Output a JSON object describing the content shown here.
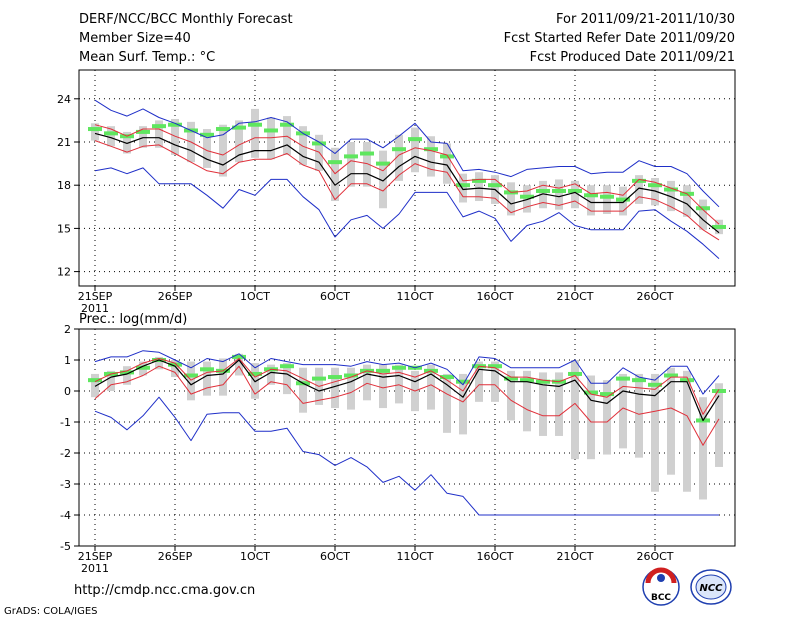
{
  "header": {
    "left": [
      "DERF/NCC/BCC Monthly Forecast",
      "Member Size=40",
      "Mean Surf. Temp.: °C"
    ],
    "right": [
      "For 2011/09/21-2011/10/30",
      "Fcst Started Refer Date 2011/09/20",
      "Fcst Produced Date 2011/09/21"
    ]
  },
  "footer": {
    "url": "http://cmdp.ncc.cma.gov.cn",
    "credit": "GrADS: COLA/IGES"
  },
  "logos": {
    "bcc": "BCC",
    "ncc": "NCC"
  },
  "colors": {
    "grid": "#000000",
    "spread": "#d0d0d0",
    "median": "#5fe65f",
    "mean": "#000000",
    "pct": "#e0303a",
    "extreme": "#1f2fc8"
  },
  "chart_data": [
    {
      "type": "line",
      "title": "Mean Surf. Temp.: °C",
      "x_labels": [
        "21SEP",
        "26SEP",
        "1OCT",
        "6OCT",
        "11OCT",
        "16OCT",
        "21OCT",
        "26OCT"
      ],
      "x_label_positions": [
        0,
        5,
        10,
        15,
        20,
        25,
        30,
        35
      ],
      "x_sublabel": "2011",
      "ylim": [
        11,
        26
      ],
      "yticks": [
        12,
        15,
        18,
        21,
        24
      ],
      "series": [
        {
          "name": "ensemble mean",
          "values": [
            21.6,
            21.3,
            20.9,
            21.3,
            21.3,
            20.8,
            20.4,
            19.8,
            19.4,
            20.1,
            20.4,
            20.4,
            20.8,
            20.0,
            19.6,
            18.0,
            18.8,
            18.8,
            18.3,
            19.3,
            20.0,
            19.6,
            19.4,
            17.7,
            17.8,
            17.7,
            16.7,
            17.0,
            17.4,
            17.2,
            17.5,
            16.8,
            16.8,
            16.8,
            17.8,
            17.6,
            17.2,
            16.7,
            15.6,
            14.7
          ]
        },
        {
          "name": "upper percentile",
          "values": [
            22.2,
            21.9,
            21.4,
            21.9,
            21.9,
            21.4,
            21.0,
            20.4,
            20.1,
            20.8,
            21.3,
            21.3,
            21.4,
            20.7,
            20.3,
            18.8,
            19.7,
            19.5,
            19.0,
            20.1,
            20.6,
            20.4,
            20.1,
            18.3,
            18.4,
            18.4,
            17.5,
            17.6,
            18.0,
            17.8,
            18.1,
            17.4,
            17.5,
            17.3,
            18.4,
            18.2,
            17.8,
            17.4,
            16.3,
            15.3
          ]
        },
        {
          "name": "lower percentile",
          "values": [
            21.1,
            20.7,
            20.3,
            20.7,
            20.8,
            20.2,
            19.6,
            19.0,
            18.8,
            19.6,
            19.8,
            19.8,
            20.2,
            19.4,
            19.0,
            17.0,
            18.1,
            18.1,
            17.6,
            18.7,
            19.5,
            19.1,
            18.9,
            17.2,
            17.2,
            17.1,
            16.1,
            16.5,
            16.8,
            16.6,
            16.9,
            16.2,
            16.2,
            16.2,
            17.2,
            17.0,
            16.5,
            15.9,
            14.9,
            14.2
          ]
        },
        {
          "name": "maximum",
          "values": [
            23.9,
            23.2,
            22.8,
            23.3,
            22.7,
            22.3,
            21.8,
            21.3,
            21.5,
            22.3,
            22.4,
            22.7,
            22.4,
            21.6,
            21.0,
            20.2,
            21.2,
            21.2,
            20.6,
            21.4,
            22.3,
            21.0,
            20.9,
            19.0,
            19.1,
            18.9,
            18.6,
            19.1,
            19.2,
            19.3,
            19.3,
            18.8,
            18.9,
            18.9,
            19.7,
            19.3,
            19.3,
            18.8,
            17.6,
            16.5
          ]
        },
        {
          "name": "minimum",
          "values": [
            19.0,
            19.2,
            18.8,
            19.2,
            18.1,
            18.1,
            18.1,
            17.3,
            16.4,
            17.7,
            17.3,
            18.4,
            18.4,
            17.2,
            16.3,
            14.4,
            15.6,
            15.9,
            15.0,
            16.0,
            17.5,
            17.5,
            17.5,
            15.8,
            16.2,
            15.7,
            14.1,
            15.2,
            15.5,
            16.1,
            15.2,
            14.9,
            14.9,
            14.9,
            16.2,
            16.3,
            15.5,
            14.8,
            13.9,
            12.9
          ]
        },
        {
          "name": "median",
          "values": [
            21.9,
            21.6,
            21.4,
            21.7,
            22.1,
            22.2,
            21.8,
            21.5,
            21.9,
            22.0,
            22.2,
            21.8,
            22.2,
            21.6,
            20.9,
            19.6,
            20.0,
            20.2,
            19.5,
            20.5,
            21.2,
            20.5,
            20.0,
            18.0,
            18.3,
            18.0,
            17.5,
            17.2,
            17.6,
            17.6,
            17.6,
            17.3,
            17.2,
            17.0,
            18.3,
            18.0,
            17.7,
            17.4,
            16.4,
            15.1
          ]
        },
        {
          "name": "spread upper",
          "values": [
            22.3,
            22.1,
            21.7,
            22.1,
            22.5,
            22.6,
            22.4,
            21.9,
            22.2,
            22.5,
            23.3,
            22.7,
            22.8,
            22.1,
            21.5,
            20.6,
            21.0,
            21.0,
            20.4,
            21.5,
            22.0,
            21.4,
            20.9,
            18.8,
            18.9,
            18.7,
            18.2,
            18.0,
            18.3,
            18.4,
            18.3,
            18.0,
            18.0,
            17.9,
            18.7,
            18.5,
            18.3,
            18.0,
            17.0,
            15.6
          ]
        },
        {
          "name": "spread lower",
          "values": [
            21.1,
            20.7,
            20.2,
            20.6,
            20.6,
            20.1,
            19.6,
            19.2,
            18.6,
            19.6,
            19.9,
            19.8,
            20.1,
            19.4,
            19.0,
            16.9,
            17.9,
            17.9,
            16.4,
            18.3,
            18.9,
            18.6,
            18.1,
            16.8,
            16.9,
            16.7,
            15.9,
            16.1,
            16.4,
            16.3,
            16.4,
            15.9,
            16.0,
            15.9,
            16.7,
            16.6,
            16.2,
            15.8,
            14.9,
            14.6
          ]
        }
      ]
    },
    {
      "type": "line",
      "title": "Prec.: log(mm/d)",
      "x_labels": [
        "21SEP",
        "26SEP",
        "1OCT",
        "6OCT",
        "11OCT",
        "16OCT",
        "21OCT",
        "26OCT"
      ],
      "x_label_positions": [
        0,
        5,
        10,
        15,
        20,
        25,
        30,
        35
      ],
      "x_sublabel": "2011",
      "ylim": [
        -5,
        2
      ],
      "yticks": [
        -5,
        -4,
        -3,
        -2,
        -1,
        0,
        1,
        2
      ],
      "series": [
        {
          "name": "ensemble mean",
          "values": [
            0.15,
            0.45,
            0.55,
            0.8,
            1.0,
            0.8,
            0.2,
            0.5,
            0.55,
            1.0,
            0.3,
            0.6,
            0.55,
            0.25,
            0.0,
            0.15,
            0.3,
            0.55,
            0.45,
            0.5,
            0.3,
            0.55,
            0.2,
            -0.2,
            0.7,
            0.65,
            0.3,
            0.3,
            0.2,
            0.15,
            0.35,
            -0.3,
            -0.4,
            0.0,
            -0.1,
            -0.15,
            0.3,
            0.3,
            -0.95,
            -0.15
          ]
        },
        {
          "name": "upper percentile",
          "values": [
            0.3,
            0.55,
            0.65,
            0.9,
            1.05,
            0.9,
            0.35,
            0.6,
            0.65,
            1.05,
            0.45,
            0.7,
            0.65,
            0.4,
            0.15,
            0.3,
            0.45,
            0.65,
            0.55,
            0.6,
            0.45,
            0.65,
            0.35,
            0.0,
            0.8,
            0.75,
            0.45,
            0.45,
            0.35,
            0.3,
            0.5,
            -0.1,
            -0.2,
            0.15,
            0.1,
            0.05,
            0.45,
            0.45,
            -0.75,
            0.05
          ]
        },
        {
          "name": "lower percentile",
          "values": [
            -0.25,
            0.2,
            0.3,
            0.5,
            0.8,
            0.6,
            -0.1,
            0.1,
            0.2,
            0.8,
            -0.1,
            0.3,
            0.2,
            -0.4,
            -0.3,
            -0.2,
            -0.05,
            0.25,
            0.1,
            0.2,
            0.0,
            0.2,
            -0.1,
            -0.35,
            0.2,
            0.2,
            -0.3,
            -0.6,
            -0.8,
            -0.8,
            -0.4,
            -1.0,
            -1.0,
            -0.55,
            -0.75,
            -0.65,
            -0.55,
            -0.8,
            -1.75,
            -0.9
          ]
        },
        {
          "name": "maximum",
          "values": [
            0.95,
            1.1,
            1.1,
            1.3,
            1.25,
            1.0,
            0.75,
            1.05,
            0.95,
            1.2,
            0.75,
            1.05,
            0.95,
            0.85,
            0.85,
            0.85,
            0.8,
            0.95,
            0.85,
            0.9,
            0.75,
            0.9,
            0.7,
            0.2,
            1.1,
            1.05,
            0.75,
            0.75,
            0.75,
            0.75,
            1.0,
            0.25,
            0.25,
            0.75,
            0.45,
            0.35,
            0.8,
            0.8,
            -0.1,
            0.5
          ]
        },
        {
          "name": "minimum",
          "values": [
            -0.65,
            -0.85,
            -1.25,
            -0.8,
            -0.2,
            -0.85,
            -1.6,
            -0.75,
            -0.7,
            -0.7,
            -1.3,
            -1.3,
            -1.2,
            -1.95,
            -2.05,
            -2.4,
            -2.15,
            -2.45,
            -2.95,
            -2.75,
            -3.2,
            -2.7,
            -3.3,
            -3.4,
            -4.0,
            -4.0,
            -4.0,
            -4.0,
            -4.0,
            -4.0,
            -4.0,
            -4.0,
            -4.0,
            -4.0,
            -4.0,
            -4.0,
            -4.0,
            -4.0,
            -4.0,
            -4.0
          ]
        },
        {
          "name": "median",
          "values": [
            0.35,
            0.55,
            0.6,
            0.75,
            1.0,
            0.85,
            0.5,
            0.7,
            0.65,
            1.1,
            0.55,
            0.7,
            0.8,
            0.25,
            0.4,
            0.45,
            0.5,
            0.65,
            0.65,
            0.75,
            0.75,
            0.65,
            0.45,
            0.3,
            0.8,
            0.8,
            0.4,
            0.35,
            0.3,
            0.3,
            0.55,
            -0.05,
            -0.1,
            0.4,
            0.35,
            0.2,
            0.5,
            0.35,
            -0.95,
            0.0
          ]
        },
        {
          "name": "spread upper",
          "values": [
            0.55,
            0.65,
            0.8,
            0.95,
            1.1,
            1.0,
            0.95,
            0.95,
            1.05,
            1.2,
            0.9,
            0.85,
            0.9,
            0.75,
            0.75,
            0.75,
            0.75,
            0.85,
            0.85,
            0.85,
            0.65,
            0.85,
            0.55,
            0.55,
            0.95,
            0.95,
            0.65,
            0.65,
            0.6,
            0.6,
            1.0,
            0.5,
            0.35,
            0.55,
            0.55,
            0.55,
            0.75,
            0.65,
            -0.2,
            0.25
          ]
        },
        {
          "name": "spread lower",
          "values": [
            -0.2,
            0.0,
            0.2,
            0.5,
            0.7,
            0.45,
            -0.3,
            -0.15,
            -0.15,
            0.5,
            -0.25,
            0.2,
            -0.1,
            -0.7,
            -0.45,
            -0.55,
            -0.6,
            -0.3,
            -0.55,
            -0.4,
            -0.65,
            -0.6,
            -1.35,
            -1.4,
            -0.35,
            -0.35,
            -0.95,
            -1.3,
            -1.45,
            -1.45,
            -2.2,
            -2.2,
            -2.05,
            -1.85,
            -2.15,
            -3.25,
            -2.7,
            -3.25,
            -3.5,
            -2.45
          ]
        }
      ]
    }
  ]
}
